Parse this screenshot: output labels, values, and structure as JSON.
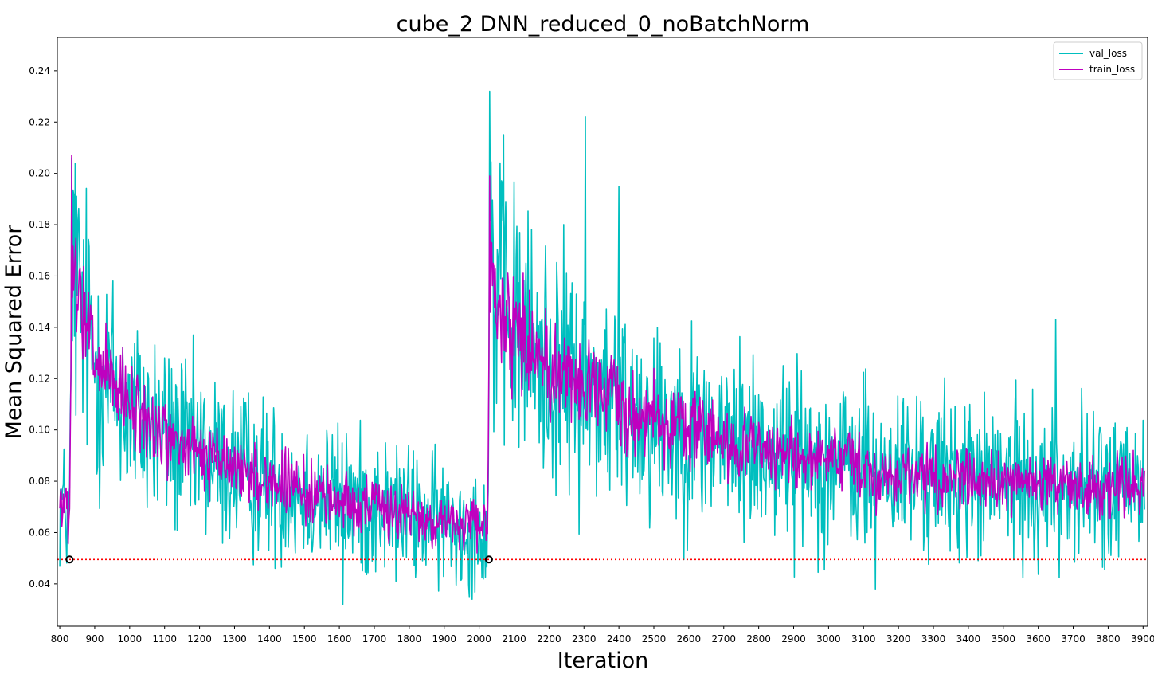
{
  "chart_data": {
    "type": "line",
    "title": "cube_2 DNN_reduced_0_noBatchNorm",
    "xlabel": "Iteration",
    "ylabel": "Mean Squared Error",
    "xlim": [
      793,
      3913
    ],
    "ylim": [
      0.0235,
      0.253
    ],
    "xticks": [
      800,
      900,
      1000,
      1100,
      1200,
      1300,
      1400,
      1500,
      1600,
      1700,
      1800,
      1900,
      2000,
      2100,
      2200,
      2300,
      2400,
      2500,
      2600,
      2700,
      2800,
      2900,
      3000,
      3100,
      3200,
      3300,
      3400,
      3500,
      3600,
      3700,
      3800,
      3900
    ],
    "yticks": [
      0.04,
      0.06,
      0.08,
      0.1,
      0.12,
      0.14,
      0.16,
      0.18,
      0.2,
      0.22,
      0.24
    ],
    "ytick_labels": [
      "0.04",
      "0.06",
      "0.08",
      "0.10",
      "0.12",
      "0.14",
      "0.16",
      "0.18",
      "0.20",
      "0.22",
      "0.24"
    ],
    "grid": false,
    "legend_position": "top-right",
    "series": [
      {
        "name": "val_loss",
        "color": "#00bfbf",
        "x": [
          800,
          810,
          820,
          828,
          835,
          850,
          875,
          900,
          950,
          1000,
          1050,
          1100,
          1150,
          1200,
          1300,
          1400,
          1500,
          1600,
          1700,
          1800,
          1900,
          2000,
          2025,
          2030,
          2040,
          2060,
          2100,
          2200,
          2300,
          2400,
          2500,
          2600,
          2700,
          2800,
          2900,
          3000,
          3100,
          3200,
          3300,
          3400,
          3500,
          3600,
          3700,
          3800,
          3900
        ],
        "y": [
          0.073,
          0.07,
          0.067,
          0.066,
          0.16,
          0.152,
          0.14,
          0.128,
          0.117,
          0.108,
          0.103,
          0.098,
          0.093,
          0.09,
          0.085,
          0.08,
          0.076,
          0.073,
          0.07,
          0.067,
          0.064,
          0.062,
          0.062,
          0.17,
          0.158,
          0.15,
          0.14,
          0.125,
          0.117,
          0.11,
          0.105,
          0.1,
          0.096,
          0.093,
          0.09,
          0.087,
          0.085,
          0.083,
          0.082,
          0.081,
          0.08,
          0.079,
          0.078,
          0.078,
          0.077
        ],
        "peak_values": {
          "x": [
            835,
            845,
            2031,
            2305,
            2400,
            3650
          ],
          "y": [
            0.206,
            0.204,
            0.232,
            0.222,
            0.195,
            0.143
          ]
        },
        "min_values": {
          "x": [
            1610,
            3135
          ],
          "y": [
            0.032,
            0.038
          ]
        }
      },
      {
        "name": "train_loss",
        "color": "#bf00bf",
        "x": [
          800,
          810,
          820,
          828,
          835,
          850,
          875,
          900,
          950,
          1000,
          1050,
          1100,
          1150,
          1200,
          1300,
          1400,
          1500,
          1600,
          1700,
          1800,
          1900,
          2000,
          2025,
          2030,
          2040,
          2060,
          2100,
          2200,
          2300,
          2400,
          2500,
          2600,
          2700,
          2800,
          2900,
          3000,
          3100,
          3200,
          3300,
          3400,
          3500,
          3600,
          3700,
          3800,
          3900
        ],
        "y": [
          0.073,
          0.07,
          0.068,
          0.067,
          0.16,
          0.152,
          0.14,
          0.128,
          0.117,
          0.108,
          0.103,
          0.098,
          0.093,
          0.09,
          0.085,
          0.08,
          0.076,
          0.073,
          0.07,
          0.067,
          0.064,
          0.062,
          0.062,
          0.17,
          0.158,
          0.15,
          0.14,
          0.125,
          0.117,
          0.11,
          0.105,
          0.1,
          0.096,
          0.093,
          0.09,
          0.087,
          0.085,
          0.083,
          0.082,
          0.081,
          0.08,
          0.079,
          0.078,
          0.078,
          0.077
        ],
        "peak_values": {
          "x": [
            834,
            2031
          ],
          "y": [
            0.207,
            0.199
          ]
        }
      }
    ],
    "reference_line": {
      "y": 0.0495,
      "color": "#ff0000",
      "style": "dotted"
    },
    "markers": [
      {
        "x": 828,
        "y": 0.0495
      },
      {
        "x": 2028,
        "y": 0.0495
      }
    ]
  }
}
